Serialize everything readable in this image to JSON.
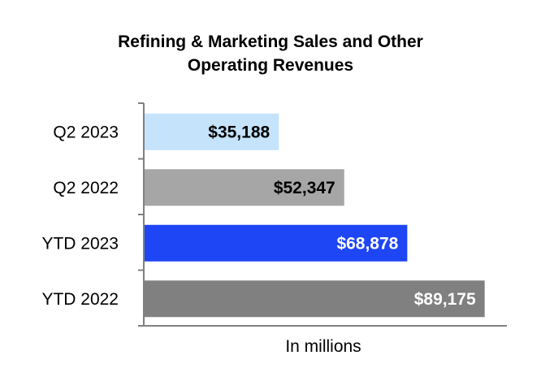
{
  "chart_data": {
    "type": "bar",
    "orientation": "horizontal",
    "title_lines": [
      "Refining & Marketing Sales and Other",
      "Operating Revenues"
    ],
    "categories": [
      "Q2 2023",
      "Q2 2022",
      "YTD 2023",
      "YTD 2022"
    ],
    "values": [
      35188,
      52347,
      68878,
      89175
    ],
    "value_labels": [
      "$35,188",
      "$52,347",
      "$68,878",
      "$89,175"
    ],
    "bar_colors": [
      "#c5e3fb",
      "#a6a6a6",
      "#1e46f5",
      "#808080"
    ],
    "label_colors": [
      "#000000",
      "#000000",
      "#ffffff",
      "#ffffff"
    ],
    "xlabel": "In millions",
    "ylabel": "",
    "xlim": [
      0,
      95000
    ],
    "grid": false,
    "legend": "none"
  }
}
